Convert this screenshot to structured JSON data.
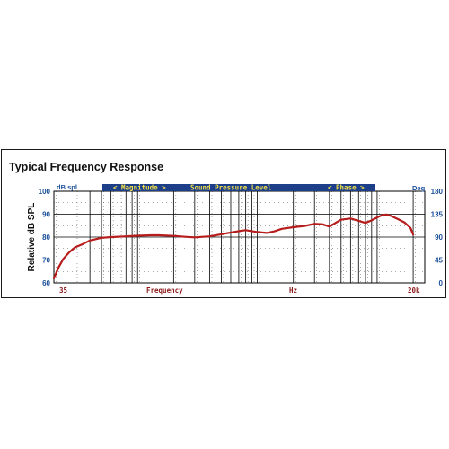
{
  "chart_data": {
    "type": "line",
    "title": "Typical Frequency Response",
    "ylabel": "Relative dB SPL",
    "y_left_unit": "dB spl",
    "y_right_unit": "Deg",
    "banner": {
      "magnitude": "< Magnitude >",
      "center": "Sound Pressure Level",
      "phase": "< Phase >"
    },
    "x_labels": {
      "left": "35",
      "center_a": "Frequency",
      "center_b": "Hz",
      "right": "20k"
    },
    "x_scale": "log",
    "xlim": [
      20,
      25000
    ],
    "ylim": [
      60,
      100
    ],
    "y_ticks": [
      "100",
      "90",
      "80",
      "70",
      "60"
    ],
    "y2_lim": [
      0,
      180
    ],
    "y2_ticks": [
      "180",
      "135",
      "90",
      "45",
      "0"
    ],
    "grid": true,
    "colors": {
      "line": "#b71c1c",
      "banner": "#1d3f8a",
      "banner_text": "#f2e04a",
      "tick_text": "#1a4f9a",
      "xlabel_text": "#8b1a1a"
    },
    "series": [
      {
        "x": [
          20,
          21,
          22,
          24,
          27,
          30,
          35,
          40,
          50,
          60,
          80,
          100,
          130,
          150,
          200,
          250,
          300,
          400,
          500,
          600,
          700,
          800,
          1000,
          1200,
          1400,
          1600,
          2000,
          2500,
          3000,
          3500,
          4000,
          4500,
          5000,
          6000,
          7000,
          8000,
          9000,
          10000,
          11000,
          12000,
          13000,
          15000,
          17000,
          19000,
          20000
        ],
        "y": [
          62,
          64.5,
          67,
          70.5,
          73.5,
          75.5,
          77,
          78.5,
          79.7,
          80,
          80.3,
          80.6,
          80.8,
          80.8,
          80.5,
          80.1,
          79.9,
          80.3,
          81.2,
          82,
          82.6,
          83,
          82.2,
          81.8,
          82.6,
          83.6,
          84.3,
          84.9,
          85.8,
          85.6,
          84.6,
          86.2,
          87.6,
          88.1,
          87.1,
          86.2,
          87.3,
          88.6,
          89.6,
          89.9,
          89.3,
          87.8,
          86.3,
          84,
          81
        ]
      }
    ]
  }
}
